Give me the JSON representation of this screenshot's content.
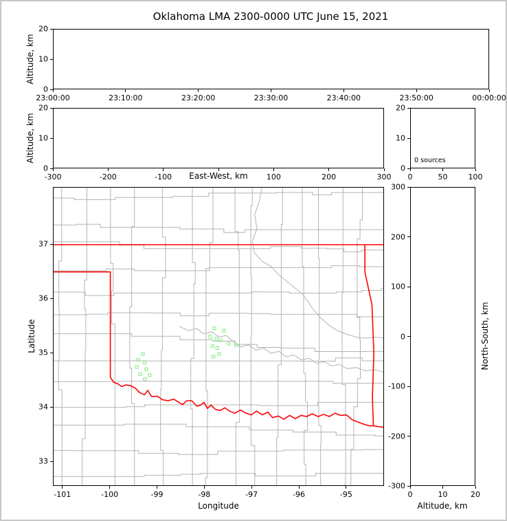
{
  "title": "Oklahoma LMA 2300-0000 UTC June 15, 2021",
  "colors": {
    "state_border": "#ff0000",
    "county_line": "#b3b3b3",
    "source_marker": "#90ee90",
    "axis": "#000000",
    "frame": "#c8c8c8"
  },
  "chart_data": [
    {
      "id": "time_height",
      "type": "scatter",
      "xlabel": "",
      "ylabel": "Altitude, km",
      "xlim": [
        0,
        360
      ],
      "ylim": [
        0,
        20
      ],
      "xticks": [
        {
          "pos": 0,
          "label": "23:00:00"
        },
        {
          "pos": 60,
          "label": "23:10:00"
        },
        {
          "pos": 120,
          "label": "23:20:00"
        },
        {
          "pos": 180,
          "label": "23:30:00"
        },
        {
          "pos": 240,
          "label": "23:40:00"
        },
        {
          "pos": 300,
          "label": "23:50:00"
        },
        {
          "pos": 360,
          "label": "00:00:00"
        }
      ],
      "yticks": [
        {
          "pos": 0,
          "label": "0"
        },
        {
          "pos": 10,
          "label": "10"
        },
        {
          "pos": 20,
          "label": "20"
        }
      ],
      "points": []
    },
    {
      "id": "ew_height",
      "type": "scatter",
      "xlabel": "East-West, km",
      "ylabel": "Altitude, km",
      "xlim": [
        -300,
        300
      ],
      "ylim": [
        0,
        20
      ],
      "xticks": [
        {
          "pos": -300,
          "label": "-300"
        },
        {
          "pos": -200,
          "label": "-200"
        },
        {
          "pos": -100,
          "label": "-100"
        },
        {
          "pos": 0,
          "label": ""
        },
        {
          "pos": 100,
          "label": "100"
        },
        {
          "pos": 200,
          "label": "200"
        },
        {
          "pos": 300,
          "label": "300"
        }
      ],
      "yticks": [
        {
          "pos": 0,
          "label": "0"
        },
        {
          "pos": 10,
          "label": "10"
        },
        {
          "pos": 20,
          "label": "20"
        }
      ],
      "points": []
    },
    {
      "id": "src_hist",
      "type": "bar",
      "xlabel": "",
      "ylabel": "",
      "annotation": "0 sources",
      "xlim": [
        0,
        100
      ],
      "ylim": [
        0,
        20
      ],
      "xticks": [
        {
          "pos": 0,
          "label": "0"
        },
        {
          "pos": 50,
          "label": "50"
        },
        {
          "pos": 100,
          "label": "100"
        }
      ],
      "yticks": [
        {
          "pos": 0,
          "label": "0"
        },
        {
          "pos": 10,
          "label": "10"
        },
        {
          "pos": 20,
          "label": "20"
        }
      ],
      "points": []
    },
    {
      "id": "plan_view",
      "type": "scatter",
      "xlabel": "Longitude",
      "ylabel": "Latitude",
      "xlim": [
        -101.2,
        -94.2
      ],
      "ylim": [
        32.55,
        38.05
      ],
      "xticks": [
        {
          "pos": -101,
          "label": "-101"
        },
        {
          "pos": -100,
          "label": "-100"
        },
        {
          "pos": -99,
          "label": "-99"
        },
        {
          "pos": -98,
          "label": "-98"
        },
        {
          "pos": -97,
          "label": "-97"
        },
        {
          "pos": -96,
          "label": "-96"
        },
        {
          "pos": -95,
          "label": "-95"
        }
      ],
      "yticks": [
        {
          "pos": 33,
          "label": "33"
        },
        {
          "pos": 34,
          "label": "34"
        },
        {
          "pos": 35,
          "label": "35"
        },
        {
          "pos": 36,
          "label": "36"
        },
        {
          "pos": 37,
          "label": "37"
        }
      ],
      "marker": "open-square",
      "points": [
        [
          -97.8,
          35.46
        ],
        [
          -97.6,
          35.42
        ],
        [
          -97.89,
          35.31
        ],
        [
          -97.76,
          35.27
        ],
        [
          -97.67,
          35.24
        ],
        [
          -97.84,
          35.14
        ],
        [
          -97.74,
          35.1
        ],
        [
          -97.5,
          35.18
        ],
        [
          -97.34,
          35.15
        ],
        [
          -97.7,
          34.99
        ],
        [
          -97.82,
          34.94
        ],
        [
          -99.31,
          34.99
        ],
        [
          -99.41,
          34.88
        ],
        [
          -99.28,
          34.83
        ],
        [
          -99.44,
          34.75
        ],
        [
          -99.24,
          34.71
        ],
        [
          -99.37,
          34.62
        ],
        [
          -99.27,
          34.53
        ],
        [
          -99.17,
          34.6
        ]
      ],
      "state_borders": [
        [
          [
            -101.2,
            37.0
          ],
          [
            -94.2,
            37.0
          ]
        ],
        [
          [
            -94.62,
            37.0
          ],
          [
            -94.62,
            36.5
          ],
          [
            -94.47,
            35.9
          ],
          [
            -94.43,
            35.0
          ],
          [
            -94.46,
            34.2
          ],
          [
            -94.44,
            33.67
          ]
        ],
        [
          [
            -101.2,
            36.5
          ],
          [
            -100.0,
            36.5
          ],
          [
            -100.0,
            34.56
          ]
        ],
        [
          [
            -100.0,
            34.56
          ],
          [
            -99.93,
            34.47
          ],
          [
            -99.84,
            34.44
          ],
          [
            -99.76,
            34.39
          ],
          [
            -99.68,
            34.42
          ],
          [
            -99.58,
            34.41
          ],
          [
            -99.47,
            34.36
          ],
          [
            -99.38,
            34.28
          ],
          [
            -99.28,
            34.24
          ],
          [
            -99.21,
            34.32
          ],
          [
            -99.13,
            34.21
          ],
          [
            -99.0,
            34.21
          ],
          [
            -98.9,
            34.15
          ],
          [
            -98.78,
            34.13
          ],
          [
            -98.66,
            34.16
          ],
          [
            -98.55,
            34.1
          ],
          [
            -98.47,
            34.06
          ],
          [
            -98.39,
            34.13
          ],
          [
            -98.28,
            34.13
          ],
          [
            -98.17,
            34.03
          ],
          [
            -98.09,
            34.05
          ],
          [
            -98.02,
            34.1
          ],
          [
            -97.95,
            33.99
          ],
          [
            -97.87,
            34.05
          ],
          [
            -97.78,
            33.97
          ],
          [
            -97.68,
            33.95
          ],
          [
            -97.58,
            34.0
          ],
          [
            -97.48,
            33.94
          ],
          [
            -97.37,
            33.9
          ],
          [
            -97.25,
            33.96
          ],
          [
            -97.13,
            33.9
          ],
          [
            -97.02,
            33.87
          ],
          [
            -96.91,
            33.94
          ],
          [
            -96.79,
            33.87
          ],
          [
            -96.67,
            33.92
          ],
          [
            -96.57,
            33.82
          ],
          [
            -96.45,
            33.85
          ],
          [
            -96.33,
            33.79
          ],
          [
            -96.21,
            33.86
          ],
          [
            -96.09,
            33.8
          ],
          [
            -95.97,
            33.86
          ],
          [
            -95.85,
            33.84
          ],
          [
            -95.73,
            33.89
          ],
          [
            -95.61,
            33.84
          ],
          [
            -95.49,
            33.88
          ],
          [
            -95.37,
            33.84
          ],
          [
            -95.25,
            33.9
          ],
          [
            -95.13,
            33.86
          ],
          [
            -95.01,
            33.87
          ],
          [
            -94.89,
            33.78
          ],
          [
            -94.77,
            33.74
          ],
          [
            -94.65,
            33.7
          ],
          [
            -94.53,
            33.67
          ],
          [
            -94.44,
            33.67
          ],
          [
            -94.3,
            33.65
          ],
          [
            -94.2,
            33.64
          ]
        ]
      ],
      "rivers": [
        [
          [
            -98.55,
            35.5
          ],
          [
            -98.35,
            35.42
          ],
          [
            -98.18,
            35.46
          ],
          [
            -98.02,
            35.36
          ],
          [
            -97.86,
            35.4
          ],
          [
            -97.7,
            35.3
          ],
          [
            -97.55,
            35.33
          ],
          [
            -97.4,
            35.22
          ],
          [
            -97.24,
            35.12
          ],
          [
            -97.08,
            35.16
          ],
          [
            -96.92,
            35.06
          ],
          [
            -96.76,
            35.1
          ],
          [
            -96.6,
            35.0
          ],
          [
            -96.44,
            35.04
          ],
          [
            -96.28,
            34.94
          ],
          [
            -96.12,
            34.97
          ],
          [
            -95.96,
            34.88
          ],
          [
            -95.8,
            34.91
          ],
          [
            -95.64,
            34.82
          ],
          [
            -95.48,
            34.85
          ],
          [
            -95.32,
            34.77
          ],
          [
            -95.16,
            34.8
          ],
          [
            -95.0,
            34.72
          ],
          [
            -94.8,
            34.74
          ],
          [
            -94.6,
            34.68
          ],
          [
            -94.4,
            34.7
          ],
          [
            -94.2,
            34.65
          ]
        ],
        [
          [
            -96.8,
            38.05
          ],
          [
            -96.85,
            37.8
          ],
          [
            -96.95,
            37.55
          ],
          [
            -96.9,
            37.3
          ],
          [
            -97.0,
            37.05
          ],
          [
            -96.95,
            36.85
          ],
          [
            -96.8,
            36.7
          ],
          [
            -96.6,
            36.6
          ],
          [
            -96.45,
            36.45
          ],
          [
            -96.3,
            36.35
          ],
          [
            -96.12,
            36.22
          ],
          [
            -95.95,
            36.1
          ],
          [
            -95.82,
            35.95
          ],
          [
            -95.7,
            35.8
          ],
          [
            -95.55,
            35.65
          ],
          [
            -95.38,
            35.52
          ],
          [
            -95.2,
            35.42
          ],
          [
            -95.0,
            35.35
          ],
          [
            -94.8,
            35.3
          ],
          [
            -94.6,
            35.28
          ],
          [
            -94.4,
            35.3
          ],
          [
            -94.2,
            35.28
          ]
        ]
      ]
    },
    {
      "id": "ns_height",
      "type": "scatter",
      "xlabel": "Altitude, km",
      "ylabel": "North-South, km",
      "xlim": [
        0,
        20
      ],
      "ylim": [
        -300,
        300
      ],
      "xticks": [
        {
          "pos": 0,
          "label": "0"
        },
        {
          "pos": 10,
          "label": "10"
        },
        {
          "pos": 20,
          "label": "20"
        }
      ],
      "yticks": [
        {
          "pos": 300,
          "label": "300"
        },
        {
          "pos": 200,
          "label": "200"
        },
        {
          "pos": 100,
          "label": "100"
        },
        {
          "pos": 0,
          "label": "0"
        },
        {
          "pos": -100,
          "label": "-100"
        },
        {
          "pos": -200,
          "label": "-200"
        },
        {
          "pos": -300,
          "label": "-300"
        }
      ],
      "points": []
    }
  ]
}
